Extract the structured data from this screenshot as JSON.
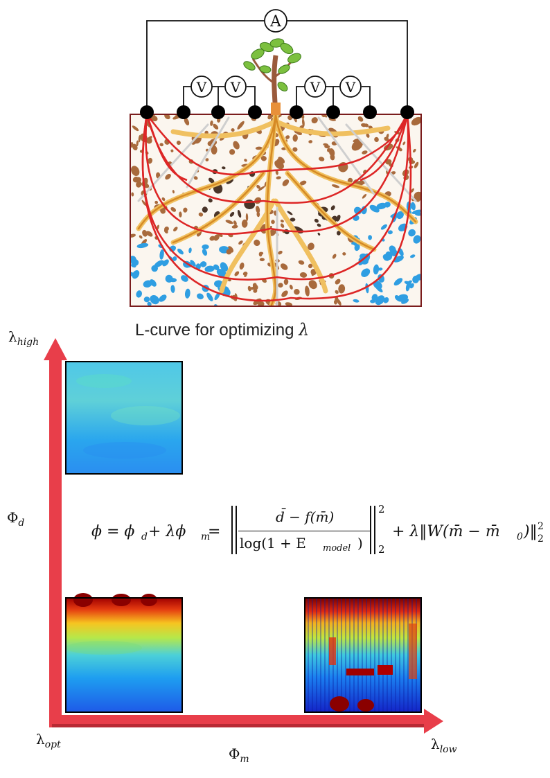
{
  "schematic": {
    "ammeter_label": "A",
    "voltmeter_label": "V",
    "colors": {
      "soil_brown": "#a86a3c",
      "dark_pebble": "#4a3529",
      "water_blue": "#2f9ee2",
      "root_orange": "#e9a33a",
      "current_red": "#dd2626",
      "frame": "#7a1c1c"
    }
  },
  "lcurve": {
    "caption_text": "L-curve for optimizing ",
    "caption_symbol": "λ",
    "lambda_high": {
      "base": "λ",
      "sub": "high"
    },
    "phi_d": {
      "base": "Φ",
      "sub": "d"
    },
    "lambda_opt": {
      "base": "λ",
      "sub": "opt"
    },
    "phi_m": {
      "base": "Φ",
      "sub": "m"
    },
    "lambda_low": {
      "base": "λ",
      "sub": "low"
    },
    "axis_color": "#e83e4a",
    "panels": [
      "smooth-blue",
      "layered-opt",
      "noisy-low"
    ]
  },
  "formula": {
    "lhs": "ϕ = ϕ",
    "lhs_sub": "d",
    "plus_lambda": " + λϕ",
    "lm_sub": "m",
    "eq": " = ",
    "numerator": "d̄ − f(m̄)",
    "denominator": "log(1 + E",
    "den_sub": "model",
    "den_close": ")",
    "sq": "2",
    "norm_sub": "2",
    "reg": "+ λ‖W(m̄ − m̄",
    "reg_sub": "0",
    "reg_close": ")‖",
    "reg_sq": "2",
    "reg_norm_sub": "2"
  }
}
